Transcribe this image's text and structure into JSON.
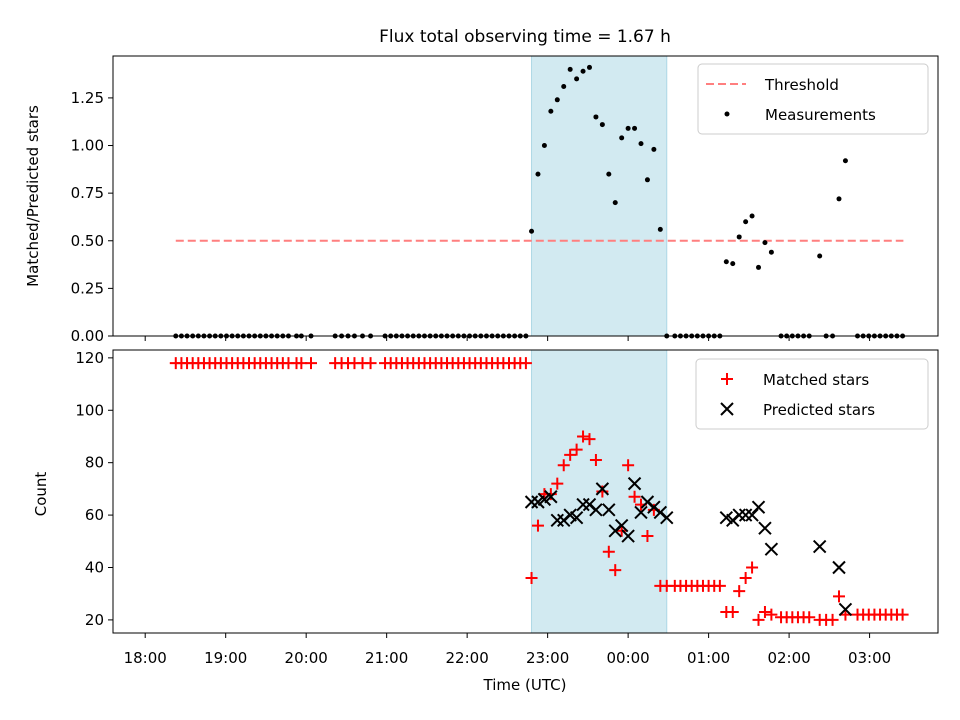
{
  "chart_data": [
    {
      "type": "scatter",
      "title": "Flux total observing time = 1.67 h",
      "xlabel": "",
      "ylabel": "Matched/Predicted stars",
      "x_unit": "hours since 18:00 UTC",
      "xlim": [
        -0.4,
        9.85
      ],
      "ylim": [
        0,
        1.47
      ],
      "yticks": [
        0,
        0.25,
        0.5,
        0.75,
        1.0,
        1.25
      ],
      "ytick_labels": [
        "0.00",
        "0.25",
        "0.50",
        "0.75",
        "1.00",
        "1.25"
      ],
      "highlight_span": [
        4.8,
        6.48
      ],
      "legend_position": "upper right",
      "legend": {
        "threshold": "Threshold",
        "measurements": "Measurements"
      },
      "threshold": {
        "name": "Threshold",
        "value": 0.5,
        "x_range": [
          0.38,
          9.42
        ],
        "color": "#ff7f7f"
      },
      "series": [
        {
          "name": "Measurements",
          "color": "#000000",
          "x": [
            0.38,
            0.45,
            0.52,
            0.59,
            0.66,
            0.73,
            0.8,
            0.87,
            0.94,
            1.01,
            1.08,
            1.15,
            1.22,
            1.29,
            1.36,
            1.43,
            1.5,
            1.57,
            1.64,
            1.71,
            1.78,
            1.88,
            1.94,
            2.06,
            2.36,
            2.44,
            2.52,
            2.6,
            2.7,
            2.8,
            2.98,
            3.05,
            3.12,
            3.19,
            3.26,
            3.33,
            3.4,
            3.47,
            3.54,
            3.61,
            3.68,
            3.75,
            3.82,
            3.89,
            3.96,
            4.03,
            4.1,
            4.17,
            4.24,
            4.31,
            4.38,
            4.45,
            4.52,
            4.59,
            4.66,
            4.73,
            4.8,
            4.88,
            4.96,
            5.04,
            5.12,
            5.2,
            5.28,
            5.36,
            5.44,
            5.52,
            5.6,
            5.68,
            5.76,
            5.84,
            5.92,
            6.0,
            6.08,
            6.16,
            6.24,
            6.32,
            6.4,
            6.48,
            6.58,
            6.65,
            6.72,
            6.79,
            6.86,
            6.93,
            7.0,
            7.07,
            7.14,
            7.22,
            7.3,
            7.38,
            7.46,
            7.54,
            7.62,
            7.7,
            7.78,
            7.9,
            7.97,
            8.04,
            8.11,
            8.18,
            8.25,
            8.38,
            8.46,
            8.54,
            8.62,
            8.7,
            8.85,
            8.92,
            8.99,
            9.06,
            9.13,
            9.2,
            9.27,
            9.34,
            9.41
          ],
          "y": [
            0,
            0,
            0,
            0,
            0,
            0,
            0,
            0,
            0,
            0,
            0,
            0,
            0,
            0,
            0,
            0,
            0,
            0,
            0,
            0,
            0,
            0,
            0,
            0,
            0,
            0,
            0,
            0,
            0,
            0,
            0,
            0,
            0,
            0,
            0,
            0,
            0,
            0,
            0,
            0,
            0,
            0,
            0,
            0,
            0,
            0,
            0,
            0,
            0,
            0,
            0,
            0,
            0,
            0,
            0,
            0,
            0.55,
            0.85,
            1.0,
            1.18,
            1.24,
            1.31,
            1.4,
            1.35,
            1.39,
            1.41,
            1.15,
            1.11,
            0.85,
            0.7,
            1.04,
            1.09,
            1.09,
            1.01,
            0.82,
            0.98,
            0.56,
            0,
            0,
            0,
            0,
            0,
            0,
            0,
            0,
            0,
            0,
            0.39,
            0.38,
            0.52,
            0.6,
            0.63,
            0.36,
            0.49,
            0.44,
            0,
            0,
            0,
            0,
            0,
            0,
            0.42,
            0,
            0,
            0.72,
            0.92,
            0,
            0,
            0,
            0,
            0,
            0,
            0,
            0,
            0
          ]
        }
      ]
    },
    {
      "type": "scatter",
      "title": "",
      "xlabel": "Time (UTC)",
      "ylabel": "Count",
      "x_unit": "hours since 18:00 UTC",
      "xlim": [
        -0.4,
        9.85
      ],
      "ylim": [
        15,
        123
      ],
      "yticks": [
        20,
        40,
        60,
        80,
        100,
        120
      ],
      "ytick_labels": [
        "20",
        "40",
        "60",
        "80",
        "100",
        "120"
      ],
      "xticks": [
        0,
        1,
        2,
        3,
        4,
        5,
        6,
        7,
        8,
        9
      ],
      "xtick_labels": [
        "18:00",
        "19:00",
        "20:00",
        "21:00",
        "22:00",
        "23:00",
        "00:00",
        "01:00",
        "02:00",
        "03:00"
      ],
      "highlight_span": [
        4.8,
        6.48
      ],
      "legend_position": "upper right",
      "legend": {
        "matched": "Matched stars",
        "predicted": "Predicted stars"
      },
      "series": [
        {
          "name": "Matched stars",
          "marker": "plus",
          "color": "#ff0000",
          "x": [
            0.38,
            0.45,
            0.52,
            0.59,
            0.66,
            0.73,
            0.8,
            0.87,
            0.94,
            1.01,
            1.08,
            1.15,
            1.22,
            1.29,
            1.36,
            1.43,
            1.5,
            1.57,
            1.64,
            1.71,
            1.78,
            1.88,
            1.94,
            2.06,
            2.36,
            2.44,
            2.52,
            2.6,
            2.7,
            2.8,
            2.98,
            3.05,
            3.12,
            3.19,
            3.26,
            3.33,
            3.4,
            3.47,
            3.54,
            3.61,
            3.68,
            3.75,
            3.82,
            3.89,
            3.96,
            4.03,
            4.1,
            4.17,
            4.24,
            4.31,
            4.38,
            4.45,
            4.52,
            4.59,
            4.66,
            4.73,
            4.8,
            4.88,
            4.96,
            5.04,
            5.12,
            5.2,
            5.28,
            5.36,
            5.44,
            5.52,
            5.6,
            5.68,
            5.76,
            5.84,
            5.92,
            6.0,
            6.08,
            6.16,
            6.24,
            6.32,
            6.4,
            6.48,
            6.58,
            6.65,
            6.72,
            6.79,
            6.86,
            6.93,
            7.0,
            7.07,
            7.14,
            7.22,
            7.3,
            7.38,
            7.46,
            7.54,
            7.62,
            7.7,
            7.78,
            7.9,
            7.97,
            8.04,
            8.11,
            8.18,
            8.25,
            8.38,
            8.46,
            8.54,
            8.62,
            8.7,
            8.85,
            8.92,
            8.99,
            9.06,
            9.13,
            9.2,
            9.27,
            9.34,
            9.41
          ],
          "y": [
            118,
            118,
            118,
            118,
            118,
            118,
            118,
            118,
            118,
            118,
            118,
            118,
            118,
            118,
            118,
            118,
            118,
            118,
            118,
            118,
            118,
            118,
            118,
            118,
            118,
            118,
            118,
            118,
            118,
            118,
            118,
            118,
            118,
            118,
            118,
            118,
            118,
            118,
            118,
            118,
            118,
            118,
            118,
            118,
            118,
            118,
            118,
            118,
            118,
            118,
            118,
            118,
            118,
            118,
            118,
            118,
            36,
            56,
            68,
            68,
            72,
            79,
            83,
            85,
            90,
            89,
            81,
            69,
            46,
            39,
            54,
            79,
            67,
            64,
            52,
            62,
            33,
            33,
            33,
            33,
            33,
            33,
            33,
            33,
            33,
            33,
            33,
            23,
            23,
            31,
            36,
            40,
            20,
            23,
            22,
            21,
            21,
            21,
            21,
            21,
            21,
            20,
            20,
            20,
            29,
            22,
            22,
            22,
            22,
            22,
            22,
            22,
            22,
            22,
            22
          ]
        },
        {
          "name": "Predicted stars",
          "marker": "x",
          "color": "#000000",
          "x": [
            4.8,
            4.88,
            4.96,
            5.04,
            5.12,
            5.2,
            5.28,
            5.36,
            5.44,
            5.52,
            5.6,
            5.68,
            5.76,
            5.84,
            5.92,
            6.0,
            6.08,
            6.16,
            6.24,
            6.32,
            6.4,
            6.48,
            7.22,
            7.3,
            7.38,
            7.46,
            7.54,
            7.62,
            7.7,
            7.78,
            8.38,
            8.62,
            8.7
          ],
          "y": [
            65,
            65,
            66,
            67,
            58,
            58,
            60,
            59,
            64,
            64,
            62,
            70,
            62,
            54,
            56,
            52,
            72,
            61,
            65,
            63,
            61,
            59,
            59,
            58,
            60,
            60,
            60,
            63,
            55,
            47,
            48,
            40,
            24
          ]
        }
      ]
    }
  ]
}
